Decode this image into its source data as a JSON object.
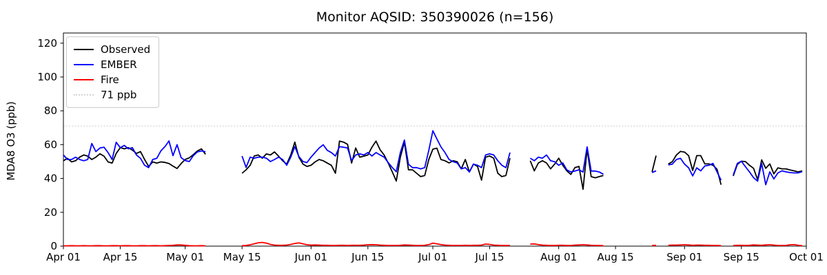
{
  "chart_data": {
    "type": "line",
    "title": "Monitor AQSID: 350390026 (n=156)",
    "ylabel": "MDA8 O3 (ppb)",
    "legend": [
      "Observed",
      "EMBER",
      "Fire",
      "71 ppb"
    ],
    "legend_position": "upper left",
    "grid": false,
    "ylim": [
      0,
      126
    ],
    "yticks": [
      0,
      20,
      40,
      60,
      80,
      100,
      120
    ],
    "x_span_days": 183,
    "xticks": {
      "days": [
        0,
        14,
        30,
        44,
        61,
        75,
        91,
        105,
        122,
        136,
        153,
        167,
        183
      ],
      "labels": [
        "Apr 01",
        "Apr 15",
        "May 01",
        "May 15",
        "Jun 01",
        "Jun 15",
        "Jul 01",
        "Jul 15",
        "Aug 01",
        "Aug 15",
        "Sep 01",
        "Sep 15",
        "Oct 01"
      ]
    },
    "threshold": {
      "label": "71 ppb",
      "value": 71,
      "color": "#d3d3d3",
      "style": "dotted"
    },
    "colors": {
      "observed": "#000000",
      "ember": "#0000ff",
      "fire": "#ff0000"
    },
    "n": 156,
    "series": [
      {
        "name": "Observed",
        "color": "#000000",
        "segments": [
          {
            "start_day": 0,
            "values": [
              50.5,
              51.9,
              49.8,
              50.5,
              52.6,
              53.9,
              53.2,
              51.2,
              52.6,
              54.6,
              53.2,
              49.8,
              49.1,
              54.8,
              58.2,
              57.5,
              58.2,
              56.8,
              54.8,
              55.9,
              51.2,
              47.1,
              49.8,
              49.1,
              49.8,
              49.5,
              48.8,
              47.3,
              45.9,
              48.8,
              51.2,
              52.2,
              54.1,
              56.3,
              57.5,
              54.3
            ]
          },
          {
            "start_day": 44,
            "values": [
              43.1,
              45.1,
              47.8,
              53.3,
              53.9,
              52.0,
              54.5,
              53.9,
              55.7,
              53.2,
              50.5,
              48.5,
              53.9,
              61.5,
              52.5,
              48.5,
              47.1,
              47.8,
              49.8,
              51.2,
              50.5,
              49.1,
              47.8,
              43.1,
              62.1,
              61.5,
              60.2,
              49.1,
              58.0,
              52.6,
              53.2,
              53.9,
              58.5,
              62.1,
              57.0,
              53.9,
              49.1,
              44.0,
              38.5,
              52.6,
              61.4,
              45.1,
              45.1,
              43.1,
              41.1,
              41.8,
              51.2,
              57.3,
              57.9,
              51.2,
              50.5,
              49.2,
              50.5,
              49.9,
              45.7,
              51.2,
              43.8,
              48.5,
              47.1,
              39.0,
              52.6,
              53.3,
              52.0,
              43.1,
              41.1,
              41.8,
              52.0
            ]
          },
          {
            "start_day": 115,
            "values": [
              50.5,
              44.5,
              49.2,
              50.5,
              49.2,
              45.7,
              48.5,
              52.0,
              47.8,
              44.5,
              42.4,
              46.4,
              47.1,
              33.6,
              57.3,
              41.1,
              40.4,
              41.1,
              41.8
            ]
          },
          {
            "start_day": 145,
            "values": [
              43.9,
              53.5
            ]
          },
          {
            "start_day": 149,
            "values": [
              48.5,
              49.9,
              53.9,
              56.0,
              55.6,
              53.5,
              44.7,
              53.5,
              53.5,
              48.6,
              48.6,
              47.8,
              45.5,
              36.3
            ]
          },
          {
            "start_day": 165,
            "values": [
              41.5,
              48.3,
              50.2,
              50.0,
              47.8,
              46.0,
              39.3,
              51.0,
              46.0,
              48.6,
              42.7,
              46.3,
              45.7,
              45.7,
              45.0,
              44.5,
              43.9,
              44.5
            ]
          }
        ]
      },
      {
        "name": "EMBER",
        "color": "#0000ff",
        "segments": [
          {
            "start_day": 0,
            "values": [
              53.9,
              51.2,
              51.2,
              52.6,
              51.2,
              50.5,
              51.2,
              60.7,
              55.9,
              58.0,
              58.5,
              55.3,
              51.2,
              61.4,
              58.2,
              59.5,
              57.5,
              58.2,
              53.9,
              51.9,
              47.8,
              46.4,
              51.2,
              51.9,
              56.3,
              58.8,
              62.2,
              53.5,
              60.0,
              52.3,
              50.6,
              50.0,
              53.5,
              55.7,
              56.3,
              55.8
            ]
          },
          {
            "start_day": 44,
            "values": [
              53.3,
              46.5,
              52.6,
              52.0,
              52.6,
              52.6,
              52.0,
              50.0,
              51.2,
              52.6,
              51.2,
              47.8,
              52.6,
              58.8,
              53.0,
              50.0,
              49.4,
              52.6,
              55.3,
              58.0,
              59.9,
              56.6,
              55.3,
              53.3,
              58.8,
              58.5,
              58.0,
              50.5,
              53.9,
              54.5,
              53.9,
              55.3,
              53.3,
              55.3,
              53.9,
              52.6,
              49.4,
              46.5,
              44.0,
              55.3,
              62.7,
              48.4,
              46.4,
              46.4,
              45.7,
              46.4,
              56.6,
              68.2,
              63.4,
              58.7,
              55.3,
              51.2,
              49.9,
              49.2,
              45.7,
              46.4,
              43.8,
              48.5,
              47.8,
              46.4,
              53.9,
              54.6,
              53.9,
              50.5,
              47.8,
              46.4,
              55.3
            ]
          },
          {
            "start_day": 115,
            "values": [
              52.0,
              50.5,
              52.6,
              52.0,
              53.9,
              50.5,
              49.9,
              47.8,
              49.2,
              45.1,
              43.8,
              44.4,
              45.1,
              43.8,
              58.7,
              44.4,
              44.4,
              43.8,
              42.5
            ]
          },
          {
            "start_day": 145,
            "values": [
              43.5,
              44.5
            ]
          },
          {
            "start_day": 149,
            "values": [
              48.0,
              48.5,
              51.2,
              51.9,
              48.5,
              46.3,
              41.5,
              46.3,
              44.5,
              47.4,
              47.8,
              48.9,
              43.9,
              39.0
            ]
          },
          {
            "start_day": 165,
            "values": [
              42.0,
              48.9,
              50.2,
              47.0,
              43.9,
              40.5,
              38.4,
              48.9,
              36.3,
              43.9,
              39.7,
              43.3,
              44.5,
              43.9,
              43.5,
              43.3,
              43.3,
              44.0
            ]
          }
        ]
      },
      {
        "name": "Fire",
        "color": "#ff0000",
        "segments": [
          {
            "start_day": 0,
            "values": [
              0.2,
              0.2,
              0.3,
              0.2,
              0.2,
              0.3,
              0.2,
              0.2,
              0.3,
              0.3,
              0.2,
              0.2,
              0.3,
              0.3,
              0.2,
              0.3,
              0.3,
              0.2,
              0.2,
              0.3,
              0.3,
              0.2,
              0.3,
              0.3,
              0.2,
              0.3,
              0.4,
              0.5,
              0.7,
              0.7,
              0.5,
              0.3,
              0.2,
              0.2,
              0.3,
              0.2
            ]
          },
          {
            "start_day": 44,
            "values": [
              0.3,
              0.4,
              0.8,
              1.4,
              2.0,
              2.2,
              1.8,
              1.0,
              0.6,
              0.5,
              0.5,
              0.6,
              1.0,
              1.6,
              1.9,
              1.4,
              0.8,
              0.6,
              0.7,
              0.6,
              0.5,
              0.5,
              0.4,
              0.4,
              0.5,
              0.5,
              0.4,
              0.5,
              0.5,
              0.5,
              0.6,
              0.8,
              0.9,
              0.8,
              0.6,
              0.5,
              0.4,
              0.4,
              0.4,
              0.5,
              0.7,
              0.6,
              0.5,
              0.4,
              0.4,
              0.5,
              0.9,
              1.8,
              1.4,
              0.9,
              0.6,
              0.5,
              0.4,
              0.4,
              0.4,
              0.5,
              0.4,
              0.5,
              0.5,
              0.6,
              1.2,
              1.0,
              0.6,
              0.5,
              0.4,
              0.4,
              0.4
            ]
          },
          {
            "start_day": 115,
            "values": [
              1.2,
              1.3,
              0.9,
              0.6,
              0.5,
              0.4,
              0.4,
              0.5,
              0.5,
              0.4,
              0.4,
              0.6,
              0.7,
              0.8,
              0.7,
              0.5,
              0.4,
              0.4,
              0.3
            ]
          },
          {
            "start_day": 145,
            "values": [
              0.4,
              0.5
            ]
          },
          {
            "start_day": 149,
            "values": [
              0.5,
              0.6,
              0.6,
              0.7,
              0.8,
              0.7,
              0.5,
              0.6,
              0.6,
              0.5,
              0.5,
              0.4,
              0.4,
              0.3
            ]
          },
          {
            "start_day": 165,
            "values": [
              0.4,
              0.5,
              0.5,
              0.4,
              0.5,
              0.7,
              0.6,
              0.5,
              0.7,
              0.8,
              0.6,
              0.4,
              0.4,
              0.4,
              0.8,
              0.9,
              0.5,
              0.3
            ]
          }
        ]
      }
    ]
  }
}
